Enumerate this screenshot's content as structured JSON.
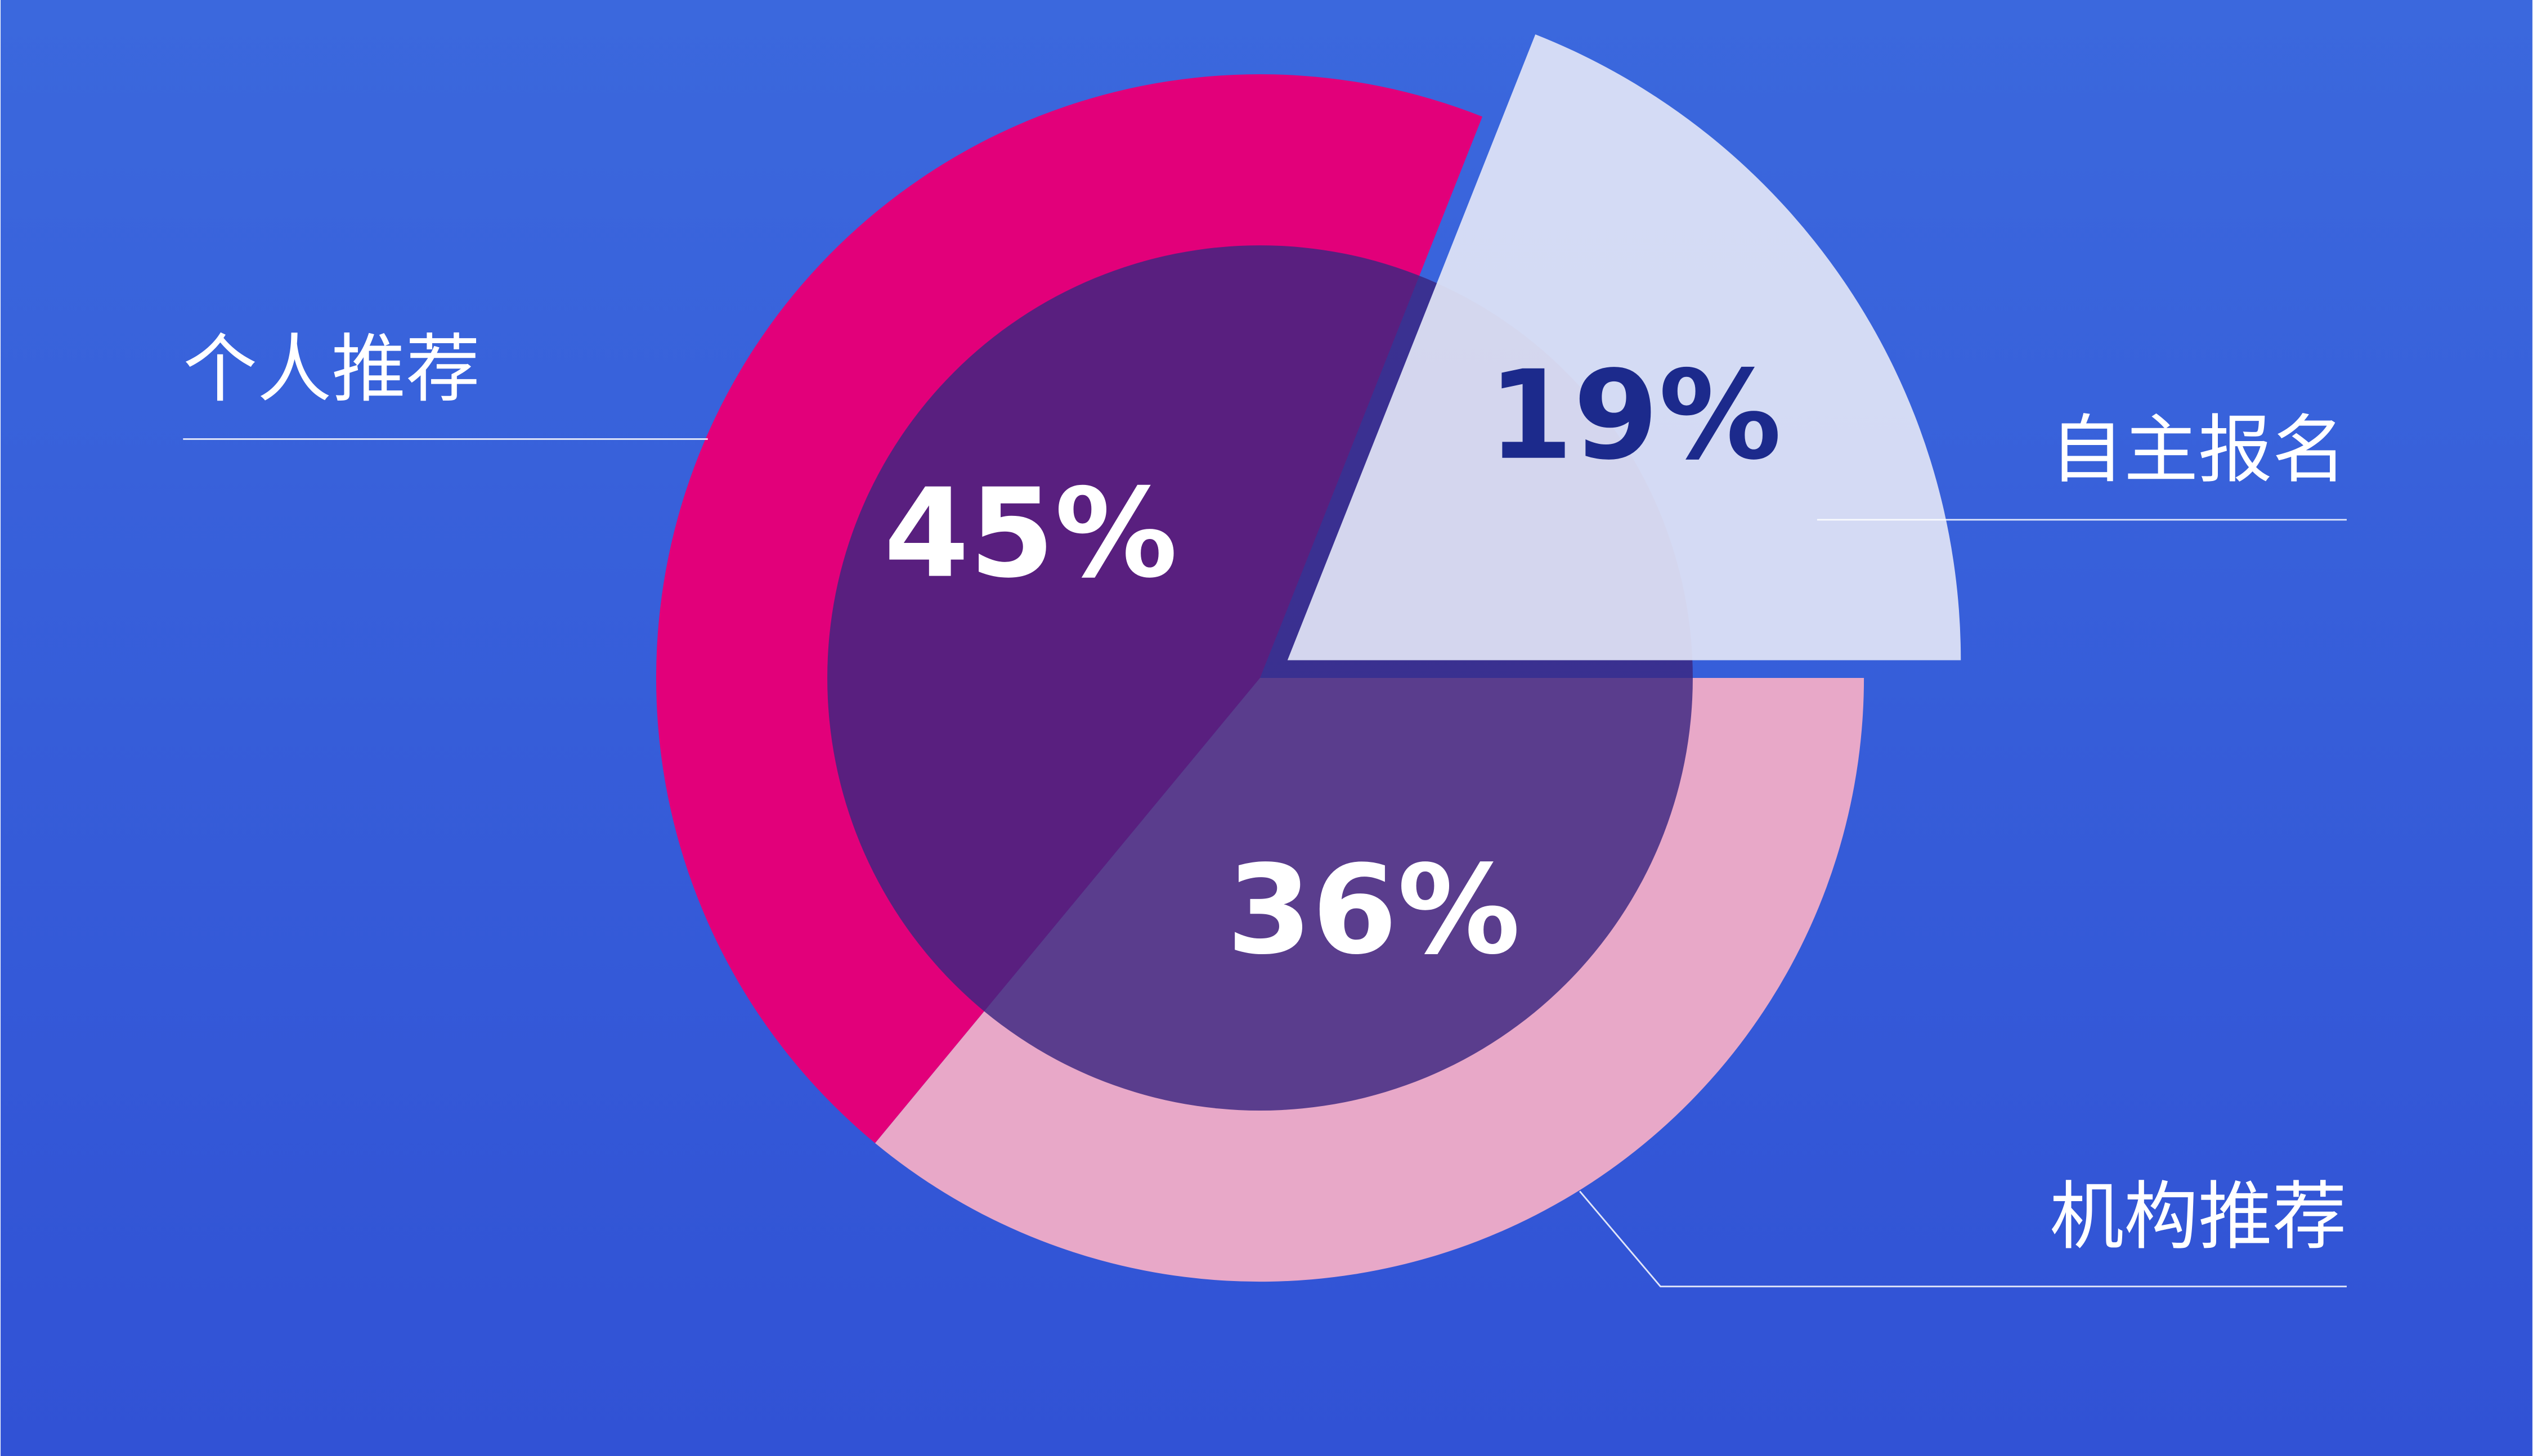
{
  "chart_data": {
    "type": "pie",
    "categories": [
      "个人推荐",
      "机构推荐",
      "自主报名"
    ],
    "values": [
      45,
      36,
      19
    ],
    "value_labels": [
      "45%",
      "36%",
      "19%"
    ],
    "colors": [
      "#e2007a",
      "#e8a8c8",
      "#e2e5f6"
    ]
  }
}
